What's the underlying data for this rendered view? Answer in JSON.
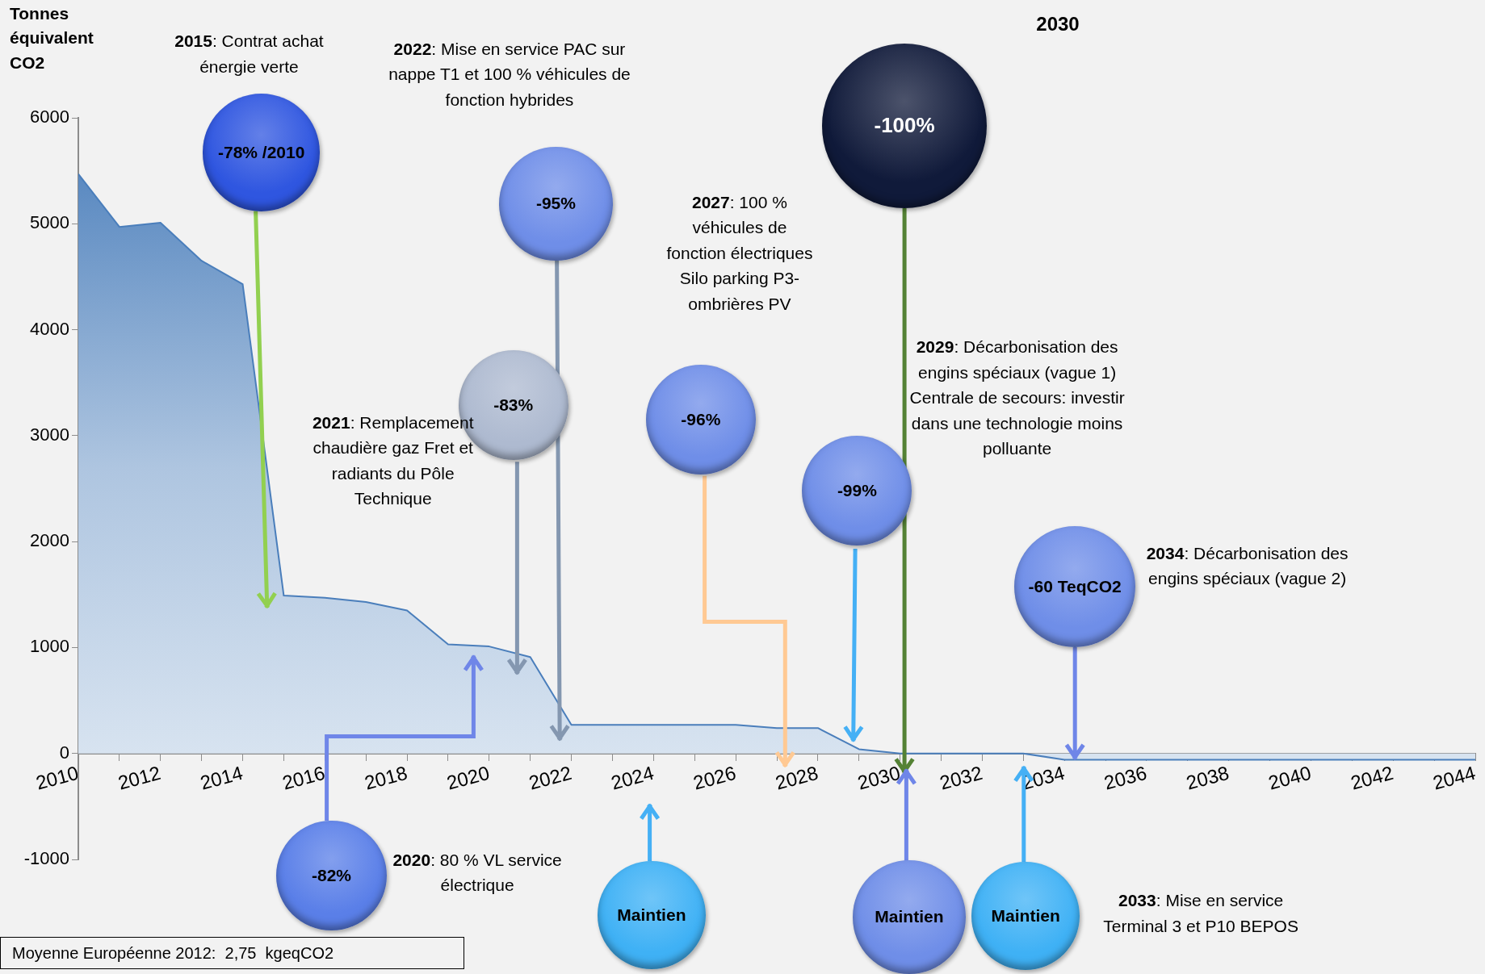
{
  "chart_data": {
    "type": "area",
    "ylabel": "Tonnes équivalent CO2",
    "x": [
      2010,
      2011,
      2012,
      2013,
      2014,
      2015,
      2016,
      2017,
      2018,
      2019,
      2020,
      2021,
      2022,
      2023,
      2024,
      2025,
      2026,
      2027,
      2028,
      2029,
      2030,
      2031,
      2032,
      2033,
      2034,
      2035,
      2036,
      2037,
      2038,
      2039,
      2040,
      2041,
      2042,
      2043,
      2044
    ],
    "series": [
      {
        "color": "#4a7ebb",
        "values": [
          5470,
          4970,
          5010,
          4650,
          4430,
          1490,
          1470,
          1430,
          1350,
          1030,
          1010,
          910,
          270,
          270,
          270,
          270,
          270,
          240,
          240,
          40,
          0,
          0,
          0,
          0,
          -60,
          -60,
          -60,
          -60,
          -60,
          -60,
          -60,
          -60,
          -60,
          -60,
          -60
        ]
      }
    ],
    "xlim": [
      2010,
      2044
    ],
    "xticks": [
      2010,
      {
        "value": 2011,
        "label": null
      },
      2012,
      {
        "value": 2013,
        "label": null
      },
      2014,
      {
        "value": 2015,
        "label": null
      },
      2016,
      {
        "value": 2017,
        "label": null
      },
      2018,
      {
        "value": 2019,
        "label": null
      },
      2020,
      {
        "value": 2021,
        "label": null
      },
      2022,
      {
        "value": 2023,
        "label": null
      },
      2024,
      {
        "value": 2025,
        "label": null
      },
      2026,
      {
        "value": 2027,
        "label": null
      },
      2028,
      {
        "value": 2029,
        "label": null
      },
      2030,
      {
        "value": 2031,
        "label": null
      },
      2032,
      {
        "value": 2033,
        "label": null
      },
      2034,
      {
        "value": 2035,
        "label": null
      },
      2036,
      {
        "value": 2037,
        "label": null
      },
      2038,
      {
        "value": 2039,
        "label": null
      },
      2040,
      {
        "value": 2041,
        "label": null
      },
      2042,
      {
        "value": 2043,
        "label": null
      },
      2044
    ],
    "ylim": [
      -1000,
      6000
    ],
    "yticks": [
      -1000,
      0,
      1000,
      2000,
      3000,
      4000,
      5000,
      6000
    ],
    "grid": false,
    "legend": false,
    "annotations": [
      "2015: Contrat achat énergie verte",
      "2022: Mise en service PAC sur nappe T1 et 100 % véhicules de fonction hybrides",
      "2027: 100 % véhicules de fonction électriques Silo parking P3-ombrières PV",
      "2021: Remplacement chaudière gaz Fret et radiants du Pôle Technique",
      "2029: Décarbonisation des engins spéciaux (vague 1) Centrale de secours: investir dans une technologie moins polluante",
      "2034: Décarbonisation des engins spéciaux (vague 2)",
      "2020: 80 % VL service électrique",
      "2033: Mise en service Terminal 3 et P10 BEPOS",
      "2030",
      "Moyenne Européenne 2012:  2,75  kgeqCO2",
      "-78% /2010",
      "-95%",
      "-83%",
      "-96%",
      "-100%",
      "-99%",
      "-60 TeqCO2",
      "-82%",
      "Maintien",
      "Maintien",
      "Maintien"
    ]
  }
}
